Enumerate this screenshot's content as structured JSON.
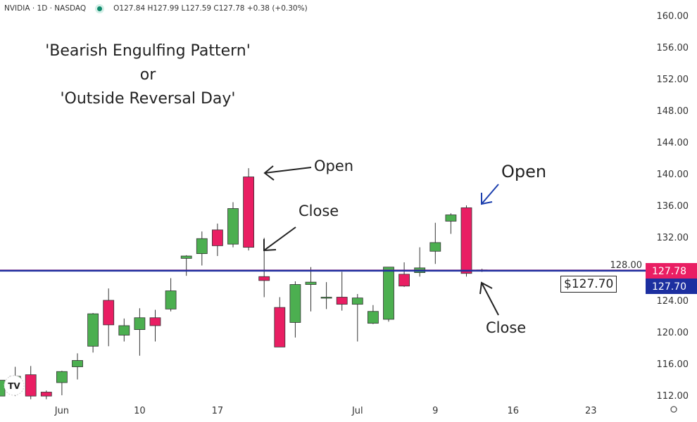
{
  "header": {
    "symbol": "NVIDIA · 1D · NASDAQ",
    "status_color": "#0f8a6c",
    "ohlc": "O127.84 H127.99 L127.59 C127.78 +0.38 (+0.30%)"
  },
  "annotations": {
    "title_lines": [
      "'Bearish Engulfing Pattern'",
      "or",
      "'Outside Reversal Day'"
    ],
    "open_left": "Open",
    "close_left": "Close",
    "open_right": "Open",
    "close_right": "Close",
    "price_box": "$127.70"
  },
  "chart_data": {
    "type": "candlestick",
    "title": "",
    "y_ticks": [
      "160.00",
      "156.00",
      "152.00",
      "148.00",
      "144.00",
      "140.00",
      "136.00",
      "132.00",
      "128.00",
      "124.00",
      "120.00",
      "116.00",
      "112.00"
    ],
    "ylim": [
      112,
      160
    ],
    "x_ticks": [
      {
        "label": "Jun",
        "date": "2024-06-03"
      },
      {
        "label": "10",
        "date": "2024-06-10"
      },
      {
        "label": "17",
        "date": "2024-06-17"
      },
      {
        "label": "Jul",
        "date": "2024-07-01"
      },
      {
        "label": "9",
        "date": "2024-07-09"
      },
      {
        "label": "16",
        "date": "2024-07-16"
      },
      {
        "label": "23",
        "date": "2024-07-23"
      }
    ],
    "colors": {
      "up": "#4caf50",
      "down": "#e91e63",
      "line": "#1c2fa0",
      "last_label": "#e91e63",
      "marker_label": "#1c2fa0"
    },
    "last_price_label": "127.78",
    "marker_price_label": "127.70",
    "marker_price": 127.7,
    "candles": [
      {
        "date": "2024-05-28",
        "o": 111.9,
        "h": 114.0,
        "l": 111.5,
        "c": 113.9
      },
      {
        "date": "2024-05-29",
        "o": 113.6,
        "h": 115.6,
        "l": 111.9,
        "c": 114.4
      },
      {
        "date": "2024-05-30",
        "o": 114.6,
        "h": 115.7,
        "l": 111.5,
        "c": 111.9
      },
      {
        "date": "2024-05-31",
        "o": 112.4,
        "h": 112.6,
        "l": 111.5,
        "c": 111.9
      },
      {
        "date": "2024-06-03",
        "o": 113.6,
        "h": 115.1,
        "l": 112.0,
        "c": 115.0
      },
      {
        "date": "2024-06-04",
        "o": 115.6,
        "h": 117.3,
        "l": 114.0,
        "c": 116.4
      },
      {
        "date": "2024-06-05",
        "o": 118.2,
        "h": 122.4,
        "l": 117.4,
        "c": 122.3
      },
      {
        "date": "2024-06-06",
        "o": 124.0,
        "h": 125.5,
        "l": 118.2,
        "c": 120.9
      },
      {
        "date": "2024-06-07",
        "o": 119.6,
        "h": 121.7,
        "l": 118.8,
        "c": 120.8
      },
      {
        "date": "2024-06-10",
        "o": 120.3,
        "h": 123.0,
        "l": 117.0,
        "c": 121.8
      },
      {
        "date": "2024-06-11",
        "o": 121.8,
        "h": 122.8,
        "l": 118.8,
        "c": 120.8
      },
      {
        "date": "2024-06-12",
        "o": 122.9,
        "h": 126.8,
        "l": 122.6,
        "c": 125.2
      },
      {
        "date": "2024-06-13",
        "o": 129.3,
        "h": 129.7,
        "l": 127.1,
        "c": 129.6
      },
      {
        "date": "2024-06-14",
        "o": 129.9,
        "h": 132.7,
        "l": 128.4,
        "c": 131.8
      },
      {
        "date": "2024-06-17",
        "o": 132.9,
        "h": 133.7,
        "l": 129.6,
        "c": 130.9
      },
      {
        "date": "2024-06-18",
        "o": 131.1,
        "h": 136.4,
        "l": 130.7,
        "c": 135.6
      },
      {
        "date": "2024-06-20",
        "o": 139.6,
        "h": 140.7,
        "l": 130.3,
        "c": 130.7
      },
      {
        "date": "2024-06-21",
        "o": 127.0,
        "h": 131.9,
        "l": 124.4,
        "c": 126.5
      },
      {
        "date": "2024-06-24",
        "o": 123.1,
        "h": 124.4,
        "l": 118.1,
        "c": 118.1
      },
      {
        "date": "2024-06-25",
        "o": 121.2,
        "h": 126.4,
        "l": 119.3,
        "c": 126.0
      },
      {
        "date": "2024-06-26",
        "o": 126.0,
        "h": 128.2,
        "l": 122.6,
        "c": 126.3
      },
      {
        "date": "2024-06-27",
        "o": 124.4,
        "h": 126.3,
        "l": 122.9,
        "c": 124.4
      },
      {
        "date": "2024-06-28",
        "o": 124.4,
        "h": 127.6,
        "l": 122.7,
        "c": 123.5
      },
      {
        "date": "2024-07-01",
        "o": 123.5,
        "h": 124.8,
        "l": 118.8,
        "c": 124.3
      },
      {
        "date": "2024-07-02",
        "o": 121.1,
        "h": 123.4,
        "l": 121.0,
        "c": 122.6
      },
      {
        "date": "2024-07-03",
        "o": 121.6,
        "h": 128.2,
        "l": 121.3,
        "c": 128.2
      },
      {
        "date": "2024-07-05",
        "o": 127.3,
        "h": 128.8,
        "l": 125.7,
        "c": 125.8
      },
      {
        "date": "2024-07-08",
        "o": 127.5,
        "h": 130.7,
        "l": 127.0,
        "c": 128.1
      },
      {
        "date": "2024-07-09",
        "o": 130.2,
        "h": 133.8,
        "l": 128.6,
        "c": 131.3
      },
      {
        "date": "2024-07-10",
        "o": 134.0,
        "h": 135.0,
        "l": 132.4,
        "c": 134.8
      },
      {
        "date": "2024-07-11",
        "o": 135.7,
        "h": 136.0,
        "l": 127.0,
        "c": 127.4
      },
      {
        "date": "2024-07-12",
        "o": 127.84,
        "h": 127.99,
        "l": 127.59,
        "c": 127.78
      }
    ],
    "settings_icon": "gear-icon",
    "watermark": "TV"
  }
}
